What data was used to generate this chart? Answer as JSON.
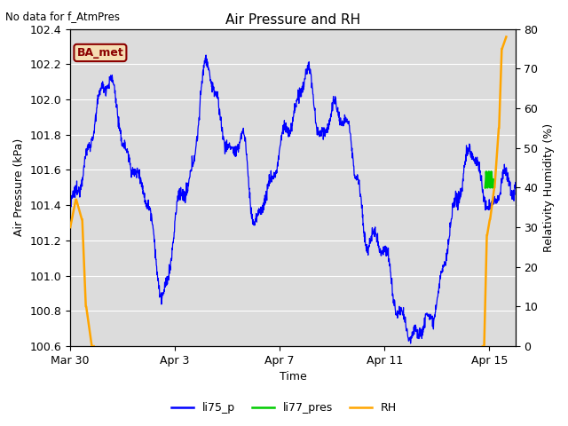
{
  "title": "Air Pressure and RH",
  "subtitle": "No data for f_AtmPres",
  "xlabel": "Time",
  "ylabel_left": "Air Pressure (kPa)",
  "ylabel_right": "Relativity Humidity (%)",
  "ylim_left": [
    100.6,
    102.4
  ],
  "ylim_right": [
    0,
    80
  ],
  "yticks_left": [
    100.6,
    100.8,
    101.0,
    101.2,
    101.4,
    101.6,
    101.8,
    102.0,
    102.2,
    102.4
  ],
  "yticks_right": [
    0,
    10,
    20,
    30,
    40,
    50,
    60,
    70,
    80
  ],
  "xtick_positions": [
    0,
    4,
    8,
    12,
    16
  ],
  "xtick_labels": [
    "Mar 30",
    "Apr 3",
    "Apr 7",
    "Apr 11",
    "Apr 15"
  ],
  "xlim": [
    0,
    17
  ],
  "plot_bg_color": "#dcdcdc",
  "grid_color": "#ffffff",
  "legend_entries": [
    "li75_p",
    "li77_pres",
    "RH"
  ],
  "legend_colors": [
    "#0000ff",
    "#00cc00",
    "#ffa500"
  ],
  "annotation_text": "BA_met",
  "annotation_text_color": "#8B0000",
  "annotation_bg_color": "#f5deb3",
  "annotation_edge_color": "#8B0000",
  "title_fontsize": 11,
  "label_fontsize": 9,
  "tick_fontsize": 9
}
